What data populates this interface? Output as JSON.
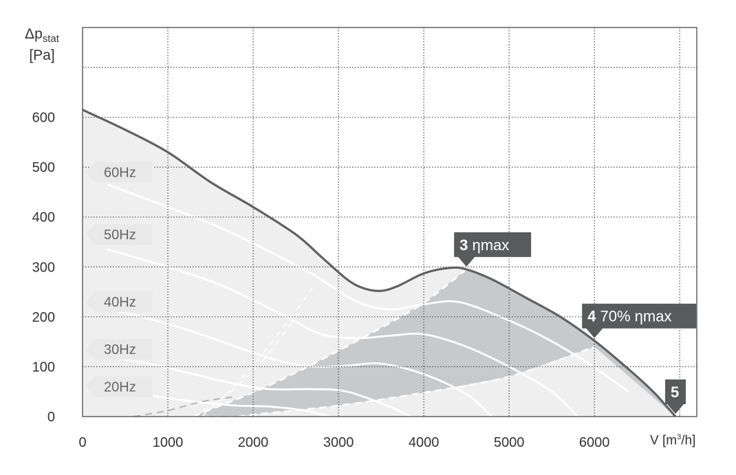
{
  "chart_data": {
    "type": "line",
    "ylabel_symbol": "Δp",
    "ylabel_sub": "stat",
    "ylabel_unit": "[Pa]",
    "xlabel_symbol": "V",
    "xlabel_unit_prefix": "[m",
    "xlabel_unit_sup": "3",
    "xlabel_unit_suffix": "/h]",
    "xlim": [
      0,
      7200
    ],
    "ylim": [
      0,
      780
    ],
    "x_ticks": [
      0,
      1000,
      2000,
      3000,
      4000,
      5000,
      6000
    ],
    "y_ticks": [
      0,
      100,
      200,
      300,
      400,
      500,
      600
    ],
    "x_grid": [
      0,
      1000,
      2000,
      3000,
      4000,
      5000,
      6000,
      7000
    ],
    "y_grid": [
      0,
      100,
      200,
      300,
      400,
      500,
      600,
      700
    ],
    "grid": true,
    "colors": {
      "envelope": "#5f6062",
      "light_fill": "#efefef",
      "dark_fill": "#c8c9cb",
      "fan_curves": "#ffffff",
      "grid": "#555555",
      "label_bg": "#595a5c",
      "label_text": "#ffffff",
      "freq_label_bg": "#e9e9ea",
      "freq_label_text": "#666666"
    },
    "envelope_curve": [
      [
        0,
        615
      ],
      [
        500,
        575
      ],
      [
        1000,
        530
      ],
      [
        1500,
        470
      ],
      [
        2000,
        420
      ],
      [
        2500,
        365
      ],
      [
        2800,
        320
      ],
      [
        3100,
        275
      ],
      [
        3300,
        257
      ],
      [
        3500,
        252
      ],
      [
        3700,
        262
      ],
      [
        4000,
        287
      ],
      [
        4300,
        298
      ],
      [
        4500,
        295
      ],
      [
        4800,
        275
      ],
      [
        5200,
        238
      ],
      [
        5600,
        200
      ],
      [
        6000,
        152
      ],
      [
        6400,
        95
      ],
      [
        6700,
        48
      ],
      [
        6950,
        0
      ]
    ],
    "light_zone_lower": [
      [
        0,
        0
      ],
      [
        500,
        0
      ],
      [
        1000,
        0
      ],
      [
        1300,
        0
      ],
      [
        1500,
        14
      ],
      [
        2000,
        48
      ],
      [
        2500,
        88
      ],
      [
        3000,
        132
      ],
      [
        3500,
        178
      ],
      [
        4000,
        228
      ],
      [
        4500,
        295
      ]
    ],
    "dark_zone_lower": [
      [
        1000,
        0
      ],
      [
        1500,
        0
      ],
      [
        1800,
        0
      ],
      [
        2000,
        4
      ],
      [
        3000,
        22
      ],
      [
        4000,
        48
      ],
      [
        5000,
        80
      ],
      [
        6000,
        140
      ],
      [
        6950,
        0
      ]
    ],
    "frequencies": [
      {
        "label": "60Hz",
        "y_label": 490,
        "curve": [
          [
            300,
            465
          ],
          [
            1000,
            420
          ],
          [
            1600,
            380
          ],
          [
            2200,
            330
          ],
          [
            2700,
            285
          ],
          [
            3200,
            232
          ],
          [
            3600,
            215
          ],
          [
            4000,
            225
          ],
          [
            4400,
            230
          ],
          [
            4900,
            200
          ],
          [
            5400,
            160
          ],
          [
            5900,
            110
          ],
          [
            6400,
            50
          ]
        ]
      },
      {
        "label": "50Hz",
        "y_label": 365,
        "curve": [
          [
            300,
            335
          ],
          [
            1000,
            300
          ],
          [
            1600,
            265
          ],
          [
            2100,
            225
          ],
          [
            2500,
            190
          ],
          [
            2800,
            165
          ],
          [
            3200,
            157
          ],
          [
            3600,
            162
          ],
          [
            4000,
            165
          ],
          [
            4500,
            140
          ],
          [
            5000,
            100
          ],
          [
            5500,
            50
          ],
          [
            5800,
            0
          ]
        ]
      },
      {
        "label": "40Hz",
        "y_label": 230,
        "curve": [
          [
            300,
            215
          ],
          [
            800,
            195
          ],
          [
            1300,
            170
          ],
          [
            1800,
            140
          ],
          [
            2300,
            112
          ],
          [
            2700,
            100
          ],
          [
            3100,
            102
          ],
          [
            3500,
            106
          ],
          [
            4000,
            85
          ],
          [
            4500,
            45
          ],
          [
            4800,
            0
          ]
        ]
      },
      {
        "label": "30Hz",
        "y_label": 135,
        "curve": [
          [
            300,
            120
          ],
          [
            800,
            105
          ],
          [
            1300,
            85
          ],
          [
            1800,
            65
          ],
          [
            2200,
            55
          ],
          [
            2700,
            55
          ],
          [
            3100,
            50
          ],
          [
            3600,
            20
          ],
          [
            3850,
            0
          ]
        ]
      },
      {
        "label": "20Hz",
        "y_label": 60,
        "curve": [
          [
            300,
            55
          ],
          [
            800,
            42
          ],
          [
            1300,
            30
          ],
          [
            1800,
            22
          ],
          [
            2200,
            20
          ],
          [
            2600,
            12
          ],
          [
            2900,
            0
          ]
        ]
      }
    ],
    "inner_dashed_curves": [
      [
        [
          1400,
          0
        ],
        [
          1800,
          65
        ],
        [
          2200,
          145
        ],
        [
          2600,
          235
        ],
        [
          2700,
          260
        ]
      ],
      [
        [
          1300,
          0
        ],
        [
          1700,
          45
        ],
        [
          2100,
          110
        ],
        [
          2400,
          175
        ],
        [
          2550,
          210
        ]
      ]
    ],
    "operating_points": [
      {
        "number": "3",
        "text": "ηmax",
        "x": 4500,
        "y": 295
      },
      {
        "number": "4",
        "text": "70% ηmax",
        "x": 6000,
        "y": 152
      },
      {
        "number": "5",
        "text": "",
        "x": 6950,
        "y": 0
      }
    ]
  }
}
